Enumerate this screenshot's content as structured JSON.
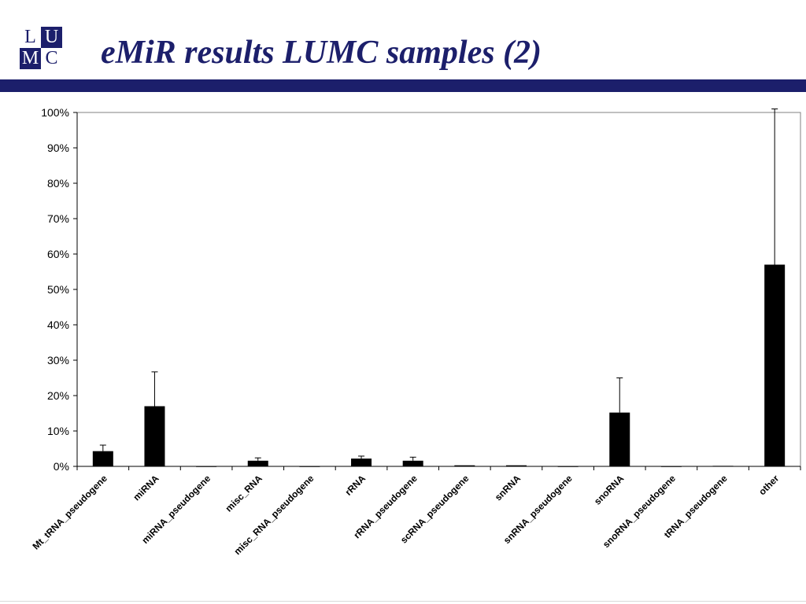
{
  "logo": {
    "letters": [
      "L",
      "U",
      "M",
      "C"
    ]
  },
  "slide": {
    "title": "eMiR results LUMC samples (2)"
  },
  "colors": {
    "brand": "#1c1f6b",
    "bar": "#000000",
    "background": "#ffffff"
  },
  "chart_data": {
    "type": "bar",
    "title": "",
    "xlabel": "",
    "ylabel": "",
    "ylim": [
      0,
      100
    ],
    "yticks": [
      "0%",
      "10%",
      "20%",
      "30%",
      "40%",
      "50%",
      "60%",
      "70%",
      "80%",
      "90%",
      "100%"
    ],
    "grid": false,
    "legend": "none",
    "categories": [
      "Mt_tRNA_pseudogene",
      "miRNA",
      "miRNA_pseudogene",
      "misc_RNA",
      "misc_RNA_pseudogene",
      "rRNA",
      "rRNA_pseudogene",
      "scRNA_pseudogene",
      "snRNA",
      "snRNA_pseudogene",
      "snoRNA",
      "snoRNA_pseudogene",
      "tRNA_pseudogene",
      "other"
    ],
    "values": [
      4.3,
      17.0,
      0.05,
      1.6,
      0.05,
      2.2,
      1.6,
      0.3,
      0.3,
      0.05,
      15.2,
      0.05,
      0.15,
      57.0
    ],
    "error_upper": [
      6.0,
      26.7,
      0.05,
      2.4,
      0.05,
      2.9,
      2.6,
      0.4,
      0.4,
      0.05,
      25.0,
      0.05,
      0.2,
      101.0
    ],
    "error_bars": "upper"
  }
}
